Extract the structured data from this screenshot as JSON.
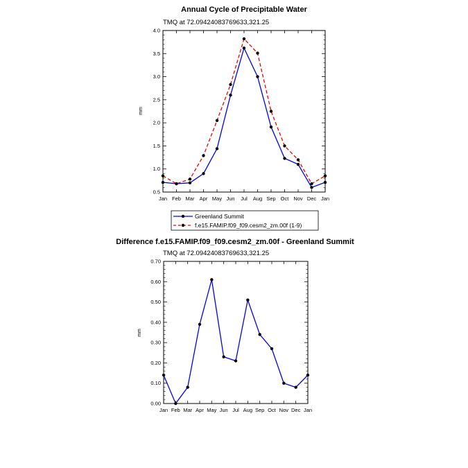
{
  "chart_data": [
    {
      "type": "line",
      "title": "Annual Cycle of Precipitable Water",
      "subtitle": "TMQ at 72.09424083769633,321.25",
      "xlabel": "",
      "ylabel": "mm",
      "categories": [
        "Jan",
        "Feb",
        "Mar",
        "Apr",
        "May",
        "Jun",
        "Jul",
        "Aug",
        "Sep",
        "Oct",
        "Nov",
        "Dec",
        "Jan"
      ],
      "ylim": [
        0.5,
        4.0
      ],
      "yticks": [
        0.5,
        1.0,
        1.5,
        2.0,
        2.5,
        3.0,
        3.5,
        4.0
      ],
      "ytick_labels": [
        "0.5",
        "1.0",
        "1.5",
        "2.0",
        "2.5",
        "3.0",
        "3.5",
        "4.0"
      ],
      "series": [
        {
          "name": "Greenland Summit",
          "color": "#0000ee",
          "dash": "solid",
          "values": [
            0.71,
            0.68,
            0.7,
            0.9,
            1.44,
            2.6,
            3.62,
            3.0,
            1.91,
            1.23,
            1.1,
            0.6,
            0.71
          ]
        },
        {
          "name": "f.e15.FAMIP.f09_f09.cesm2_zm.00f (1-9)",
          "color": "#ee0000",
          "dash": "dashed",
          "values": [
            0.85,
            0.68,
            0.78,
            1.29,
            2.05,
            2.83,
            3.82,
            3.51,
            2.25,
            1.5,
            1.2,
            0.68,
            0.85
          ]
        }
      ],
      "legend": "below"
    },
    {
      "type": "line",
      "title": "Difference f.e15.FAMIP.f09_f09.cesm2_zm.00f - Greenland Summit",
      "subtitle": "TMQ at 72.09424083769633,321.25",
      "xlabel": "",
      "ylabel": "mm",
      "categories": [
        "Jan",
        "Feb",
        "Mar",
        "Apr",
        "May",
        "Jun",
        "Jul",
        "Aug",
        "Sep",
        "Oct",
        "Nov",
        "Dec",
        "Jan"
      ],
      "ylim": [
        0.0,
        0.7
      ],
      "yticks": [
        0.0,
        0.1,
        0.2,
        0.3,
        0.4,
        0.5,
        0.6,
        0.7
      ],
      "ytick_labels": [
        "0.00",
        "0.10",
        "0.20",
        "0.30",
        "0.40",
        "0.50",
        "0.60",
        "0.70"
      ],
      "series": [
        {
          "name": "Difference",
          "color": "#0000ee",
          "dash": "solid",
          "values": [
            0.14,
            0.0,
            0.08,
            0.39,
            0.61,
            0.23,
            0.21,
            0.51,
            0.34,
            0.27,
            0.1,
            0.08,
            0.14
          ]
        }
      ]
    }
  ]
}
